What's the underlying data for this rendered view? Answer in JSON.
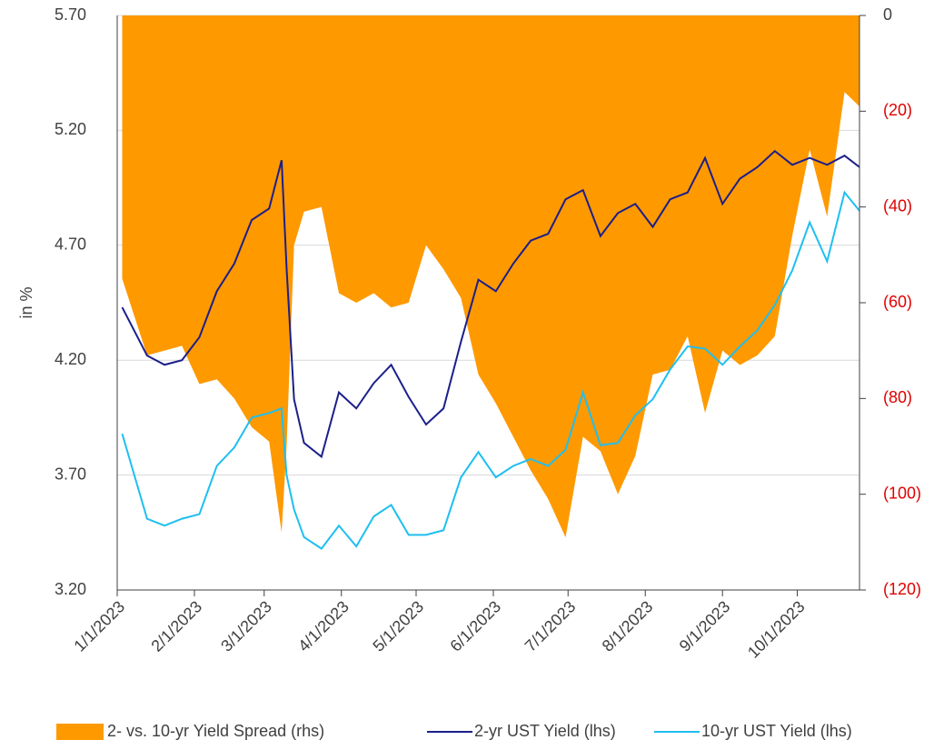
{
  "chart_data": {
    "type": "line",
    "ylabel": "in %",
    "x": [
      "1/3/2023",
      "1/13/2023",
      "1/20/2023",
      "1/27/2023",
      "2/3/2023",
      "2/10/2023",
      "2/17/2023",
      "2/24/2023",
      "3/3/2023",
      "3/8/2023",
      "3/10/2023",
      "3/13/2023",
      "3/17/2023",
      "3/24/2023",
      "3/31/2023",
      "4/7/2023",
      "4/14/2023",
      "4/21/2023",
      "4/28/2023",
      "5/5/2023",
      "5/12/2023",
      "5/19/2023",
      "5/26/2023",
      "6/2/2023",
      "6/9/2023",
      "6/16/2023",
      "6/23/2023",
      "6/30/2023",
      "7/7/2023",
      "7/14/2023",
      "7/21/2023",
      "7/28/2023",
      "8/4/2023",
      "8/11/2023",
      "8/18/2023",
      "8/25/2023",
      "9/1/2023",
      "9/8/2023",
      "9/15/2023",
      "9/22/2023",
      "9/29/2023",
      "10/6/2023",
      "10/13/2023",
      "10/20/2023",
      "10/26/2023"
    ],
    "series": [
      {
        "name": "2- vs. 10-yr Yield Spread (rhs)",
        "color": "#ff9900",
        "kind": "area",
        "axis": "y2",
        "values": [
          -55,
          -71,
          -70,
          -69,
          -77,
          -76,
          -80,
          -86,
          -89,
          -108,
          -90,
          -48,
          -41,
          -40,
          -58,
          -60,
          -58,
          -61,
          -60,
          -48,
          -53,
          -59,
          -75,
          -81,
          -88,
          -95,
          -101,
          -109,
          -88,
          -91,
          -100,
          -92,
          -75,
          -74,
          -67,
          -83,
          -70,
          -73,
          -71,
          -67,
          -46,
          -28,
          -42,
          -16,
          -19
        ]
      },
      {
        "name": "2-yr UST Yield (lhs)",
        "color": "#1b1f8a",
        "kind": "line",
        "values": [
          4.43,
          4.22,
          4.18,
          4.2,
          4.3,
          4.5,
          4.62,
          4.81,
          4.86,
          5.07,
          4.6,
          4.03,
          3.84,
          3.78,
          4.06,
          3.99,
          4.1,
          4.18,
          4.04,
          3.92,
          3.99,
          4.28,
          4.55,
          4.5,
          4.62,
          4.72,
          4.75,
          4.9,
          4.94,
          4.74,
          4.84,
          4.88,
          4.78,
          4.9,
          4.93,
          5.08,
          4.88,
          4.99,
          5.04,
          5.11,
          5.05,
          5.08,
          5.05,
          5.09,
          5.04
        ]
      },
      {
        "name": "10-yr UST Yield (lhs)",
        "color": "#1ebff0",
        "kind": "line",
        "values": [
          3.88,
          3.51,
          3.48,
          3.51,
          3.53,
          3.74,
          3.82,
          3.95,
          3.97,
          3.99,
          3.7,
          3.55,
          3.43,
          3.38,
          3.48,
          3.39,
          3.52,
          3.57,
          3.44,
          3.44,
          3.46,
          3.69,
          3.8,
          3.69,
          3.74,
          3.77,
          3.74,
          3.81,
          4.06,
          3.83,
          3.84,
          3.96,
          4.03,
          4.16,
          4.26,
          4.25,
          4.18,
          4.26,
          4.33,
          4.44,
          4.59,
          4.8,
          4.63,
          4.93,
          4.85
        ]
      }
    ],
    "xlim": [
      "1/1/2023",
      "10/26/2023"
    ],
    "xticks": [
      "1/1/2023",
      "2/1/2023",
      "3/1/2023",
      "4/1/2023",
      "5/1/2023",
      "6/1/2023",
      "7/1/2023",
      "8/1/2023",
      "9/1/2023",
      "10/1/2023"
    ],
    "ylim": [
      3.2,
      5.7
    ],
    "yticks": [
      {
        "value": 3.2,
        "label": "3.20"
      },
      {
        "value": 3.7,
        "label": "3.70"
      },
      {
        "value": 4.2,
        "label": "4.20"
      },
      {
        "value": 4.7,
        "label": "4.70"
      },
      {
        "value": 5.2,
        "label": "5.20"
      },
      {
        "value": 5.7,
        "label": "5.70"
      }
    ],
    "y2lim": [
      -120,
      0
    ],
    "y2ticks": [
      0,
      {
        "value": -20,
        "label": "(20)"
      },
      {
        "value": -40,
        "label": "(40)"
      },
      {
        "value": -60,
        "label": "(60)"
      },
      {
        "value": -80,
        "label": "(80)"
      },
      {
        "value": -100,
        "label": "(100)"
      },
      {
        "value": -120,
        "label": "(120)"
      }
    ],
    "negative_label_color": "#e00000",
    "grid": true,
    "legend": "bottom"
  }
}
